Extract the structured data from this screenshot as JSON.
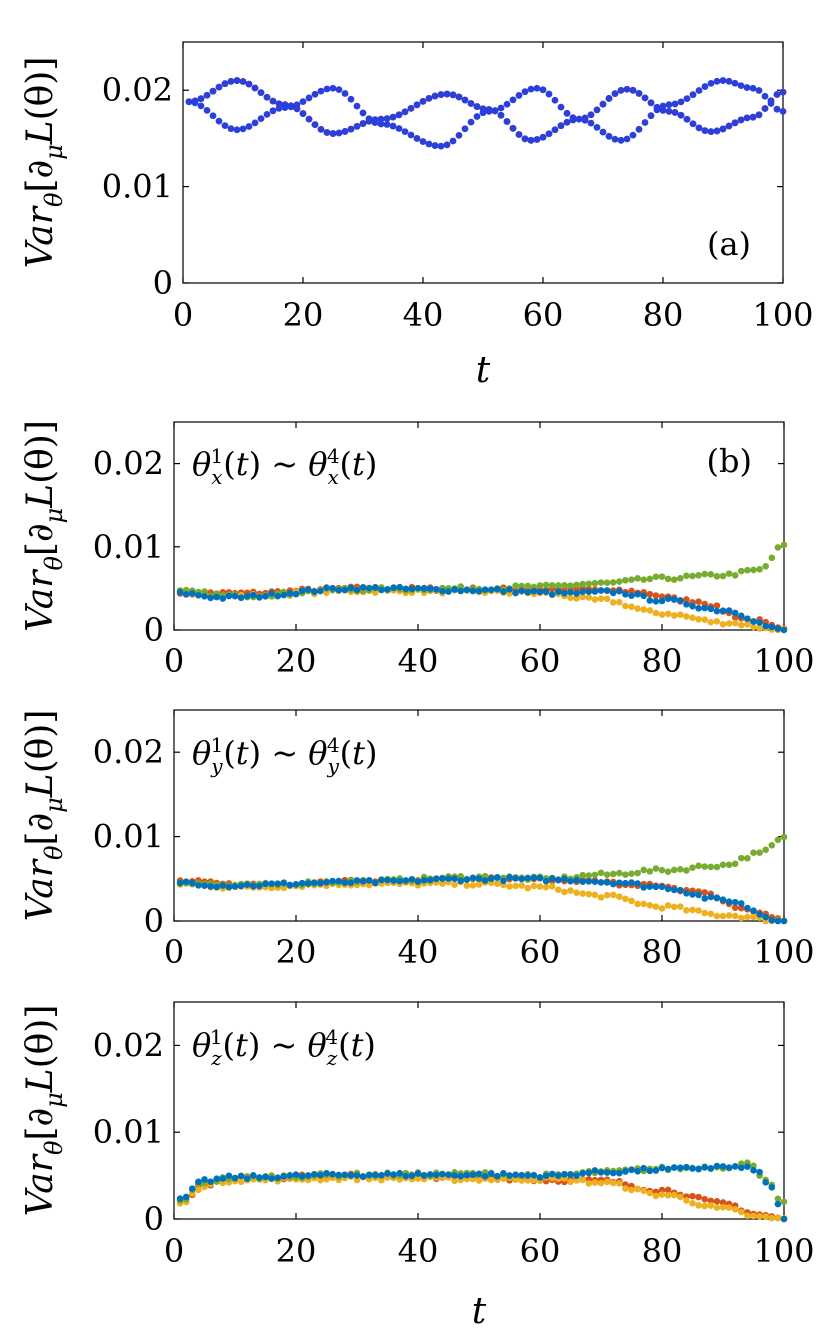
{
  "colors": {
    "red": "#d95319",
    "blue_a": "#2a3fdc",
    "yellow": "#edb120",
    "green": "#77ac30",
    "blue": "#0072bd",
    "axis": "#000000"
  },
  "labels": {
    "ylabel": "Var_θ[∂_μ L(θ)]",
    "xlabel": "t"
  },
  "chart_data": [
    {
      "type": "scatter",
      "panel": "a",
      "panel_label": "(a)",
      "title": "",
      "xlabel": "t",
      "ylabel": "Var_θ[∂_μ L(θ)]",
      "xlim": [
        0,
        100
      ],
      "ylim": [
        0,
        0.025
      ],
      "xticks": [
        0,
        20,
        40,
        60,
        80,
        100
      ],
      "yticks": [
        0,
        0.01,
        0.02
      ],
      "ytick_labels": [
        "0",
        "0.01",
        "0.02"
      ],
      "series_formula": "piecewise knots, x = 1..100",
      "series": [
        {
          "name": "red",
          "color": "#d95319",
          "dots": 1,
          "knots": [
            [
              1,
              0.0188
            ],
            [
              9,
              0.021
            ],
            [
              17,
              0.0185
            ],
            [
              25,
              0.0155
            ],
            [
              33,
              0.017
            ],
            [
              44,
              0.0196
            ],
            [
              51,
              0.018
            ],
            [
              58,
              0.0148
            ],
            [
              66,
              0.017
            ],
            [
              74,
              0.0201
            ],
            [
              81,
              0.0178
            ],
            [
              88,
              0.0157
            ],
            [
              95,
              0.0172
            ],
            [
              100,
              0.0198
            ]
          ]
        },
        {
          "name": "blue-upper",
          "color": "#2a3fdc",
          "dots": 1,
          "knots": [
            [
              1,
              0.0188
            ],
            [
              9,
              0.021
            ],
            [
              17,
              0.0185
            ],
            [
              25,
              0.0155
            ],
            [
              33,
              0.017
            ],
            [
              44,
              0.0196
            ],
            [
              51,
              0.018
            ],
            [
              58,
              0.0148
            ],
            [
              66,
              0.017
            ],
            [
              74,
              0.0201
            ],
            [
              81,
              0.0178
            ],
            [
              88,
              0.0157
            ],
            [
              95,
              0.0172
            ],
            [
              100,
              0.0198
            ]
          ]
        },
        {
          "name": "blue-lower",
          "color": "#2a3fdc",
          "dots": 1,
          "knots": [
            [
              1,
              0.0188
            ],
            [
              9,
              0.0159
            ],
            [
              17,
              0.0182
            ],
            [
              25,
              0.0202
            ],
            [
              33,
              0.0165
            ],
            [
              43,
              0.0142
            ],
            [
              51,
              0.0178
            ],
            [
              59,
              0.0202
            ],
            [
              66,
              0.017
            ],
            [
              73,
              0.0148
            ],
            [
              81,
              0.0185
            ],
            [
              90,
              0.021
            ],
            [
              95,
              0.0202
            ],
            [
              100,
              0.0178
            ]
          ]
        }
      ]
    },
    {
      "type": "scatter",
      "panel": "b",
      "panel_label": "(b)",
      "annotation": "θ_x^1(t) ~ θ_x^4(t)",
      "title": "",
      "xlabel": "",
      "ylabel": "Var_θ[∂_μ L(θ)]",
      "xlim": [
        0,
        100
      ],
      "ylim": [
        0,
        0.025
      ],
      "xticks": [
        0,
        20,
        40,
        60,
        80,
        100
      ],
      "yticks": [
        0,
        0.01,
        0.02
      ],
      "ytick_labels": [
        "0",
        "0.01",
        "0.02"
      ],
      "series_formula": "piecewise knots, x = 1..100",
      "series": [
        {
          "name": "red",
          "color": "#d95319",
          "knots": [
            [
              1,
              0.0046
            ],
            [
              10,
              0.0044
            ],
            [
              30,
              0.005
            ],
            [
              50,
              0.0049
            ],
            [
              65,
              0.0049
            ],
            [
              75,
              0.0046
            ],
            [
              85,
              0.0035
            ],
            [
              95,
              0.0012
            ],
            [
              100,
              0.0
            ]
          ]
        },
        {
          "name": "yellow",
          "color": "#edb120",
          "knots": [
            [
              1,
              0.0045
            ],
            [
              10,
              0.0041
            ],
            [
              30,
              0.0047
            ],
            [
              50,
              0.0046
            ],
            [
              60,
              0.0044
            ],
            [
              70,
              0.0036
            ],
            [
              80,
              0.002
            ],
            [
              90,
              0.0009
            ],
            [
              100,
              0.0
            ]
          ]
        },
        {
          "name": "green",
          "color": "#77ac30",
          "knots": [
            [
              1,
              0.0046
            ],
            [
              10,
              0.0041
            ],
            [
              30,
              0.0049
            ],
            [
              50,
              0.005
            ],
            [
              60,
              0.0052
            ],
            [
              70,
              0.0056
            ],
            [
              80,
              0.0062
            ],
            [
              90,
              0.0066
            ],
            [
              96,
              0.0072
            ],
            [
              100,
              0.0102
            ]
          ]
        },
        {
          "name": "blue",
          "color": "#0072bd",
          "knots": [
            [
              1,
              0.0044
            ],
            [
              8,
              0.0039
            ],
            [
              30,
              0.005
            ],
            [
              50,
              0.0048
            ],
            [
              65,
              0.0044
            ],
            [
              72,
              0.0046
            ],
            [
              80,
              0.0036
            ],
            [
              90,
              0.0024
            ],
            [
              100,
              0.0
            ]
          ]
        }
      ]
    },
    {
      "type": "scatter",
      "panel": "c",
      "panel_label": "",
      "annotation": "θ_y^1(t) ~ θ_y^4(t)",
      "title": "",
      "xlabel": "",
      "ylabel": "Var_θ[∂_μ L(θ)]",
      "xlim": [
        0,
        100
      ],
      "ylim": [
        0,
        0.025
      ],
      "xticks": [
        0,
        20,
        40,
        60,
        80,
        100
      ],
      "yticks": [
        0,
        0.01,
        0.02
      ],
      "ytick_labels": [
        "0",
        "0.01",
        "0.02"
      ],
      "series_formula": "piecewise knots, x = 1..100",
      "series": [
        {
          "name": "red",
          "color": "#d95319",
          "knots": [
            [
              1,
              0.0047
            ],
            [
              10,
              0.0043
            ],
            [
              30,
              0.0047
            ],
            [
              50,
              0.005
            ],
            [
              65,
              0.0048
            ],
            [
              75,
              0.0044
            ],
            [
              85,
              0.0036
            ],
            [
              95,
              0.0012
            ],
            [
              100,
              0.0
            ]
          ]
        },
        {
          "name": "yellow",
          "color": "#edb120",
          "knots": [
            [
              1,
              0.0044
            ],
            [
              10,
              0.004
            ],
            [
              30,
              0.0044
            ],
            [
              50,
              0.0044
            ],
            [
              60,
              0.004
            ],
            [
              70,
              0.003
            ],
            [
              80,
              0.0017
            ],
            [
              90,
              0.0007
            ],
            [
              100,
              0.0
            ]
          ]
        },
        {
          "name": "green",
          "color": "#77ac30",
          "knots": [
            [
              1,
              0.0046
            ],
            [
              10,
              0.0042
            ],
            [
              30,
              0.0047
            ],
            [
              50,
              0.0052
            ],
            [
              62,
              0.005
            ],
            [
              70,
              0.0055
            ],
            [
              80,
              0.006
            ],
            [
              90,
              0.0066
            ],
            [
              96,
              0.008
            ],
            [
              100,
              0.0098
            ]
          ]
        },
        {
          "name": "blue",
          "color": "#0072bd",
          "knots": [
            [
              1,
              0.0046
            ],
            [
              8,
              0.0042
            ],
            [
              30,
              0.0046
            ],
            [
              50,
              0.005
            ],
            [
              65,
              0.0049
            ],
            [
              72,
              0.0046
            ],
            [
              80,
              0.004
            ],
            [
              90,
              0.0025
            ],
            [
              100,
              0.0
            ]
          ]
        }
      ]
    },
    {
      "type": "scatter",
      "panel": "d",
      "panel_label": "",
      "annotation": "θ_z^1(t) ~ θ_z^4(t)",
      "title": "",
      "xlabel": "t",
      "ylabel": "Var_θ[∂_μ L(θ)]",
      "xlim": [
        0,
        100
      ],
      "ylim": [
        0,
        0.025
      ],
      "xticks": [
        0,
        20,
        40,
        60,
        80,
        100
      ],
      "yticks": [
        0,
        0.01,
        0.02
      ],
      "ytick_labels": [
        "0",
        "0.01",
        "0.02"
      ],
      "series_formula": "piecewise knots, x = 1..100",
      "series": [
        {
          "name": "red",
          "color": "#d95319",
          "knots": [
            [
              1,
              0.002
            ],
            [
              5,
              0.004
            ],
            [
              10,
              0.0047
            ],
            [
              30,
              0.005
            ],
            [
              50,
              0.0048
            ],
            [
              62,
              0.0045
            ],
            [
              70,
              0.0044
            ],
            [
              80,
              0.0033
            ],
            [
              90,
              0.0018
            ],
            [
              96,
              0.0005
            ],
            [
              100,
              0.0
            ]
          ]
        },
        {
          "name": "yellow",
          "color": "#edb120",
          "knots": [
            [
              1,
              0.0017
            ],
            [
              5,
              0.0039
            ],
            [
              10,
              0.0045
            ],
            [
              30,
              0.0047
            ],
            [
              50,
              0.0046
            ],
            [
              62,
              0.0046
            ],
            [
              70,
              0.0042
            ],
            [
              80,
              0.0028
            ],
            [
              90,
              0.0012
            ],
            [
              96,
              0.0002
            ],
            [
              100,
              0.0
            ]
          ]
        },
        {
          "name": "green",
          "color": "#77ac30",
          "knots": [
            [
              1,
              0.0021
            ],
            [
              5,
              0.0043
            ],
            [
              10,
              0.0048
            ],
            [
              30,
              0.0051
            ],
            [
              50,
              0.0052
            ],
            [
              62,
              0.005
            ],
            [
              70,
              0.0054
            ],
            [
              80,
              0.0058
            ],
            [
              90,
              0.006
            ],
            [
              94,
              0.0064
            ],
            [
              97,
              0.0047
            ],
            [
              100,
              0.0018
            ]
          ]
        },
        {
          "name": "blue",
          "color": "#0072bd",
          "knots": [
            [
              1,
              0.0022
            ],
            [
              5,
              0.0044
            ],
            [
              10,
              0.0048
            ],
            [
              30,
              0.0051
            ],
            [
              50,
              0.0051
            ],
            [
              62,
              0.005
            ],
            [
              70,
              0.0054
            ],
            [
              80,
              0.0057
            ],
            [
              90,
              0.006
            ],
            [
              95,
              0.0058
            ],
            [
              98,
              0.0036
            ],
            [
              100,
              0.0
            ]
          ]
        }
      ]
    }
  ]
}
